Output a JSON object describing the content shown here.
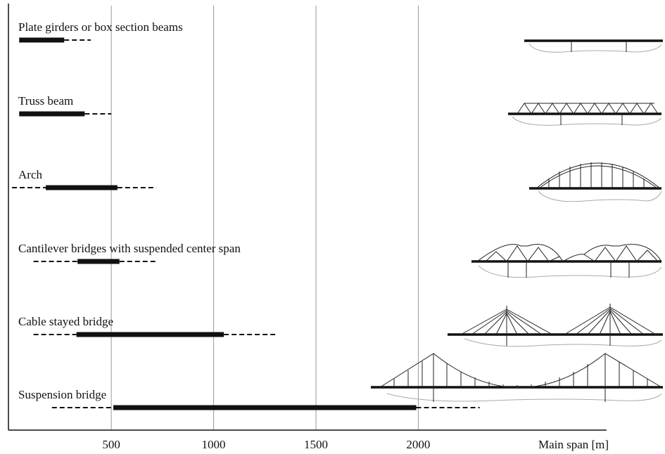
{
  "chart_data": {
    "type": "range",
    "categories": [
      "Plate girders or box section beams",
      "Truss beam",
      "Arch",
      "Cantilever bridges with suspended center span",
      "Cable stayed bridge",
      "Suspension bridge"
    ],
    "typical": [
      [
        50,
        270
      ],
      [
        50,
        370
      ],
      [
        180,
        530
      ],
      [
        335,
        540
      ],
      [
        330,
        1050
      ],
      [
        510,
        1990
      ]
    ],
    "possible": [
      [
        50,
        400
      ],
      [
        50,
        500
      ],
      [
        15,
        720
      ],
      [
        120,
        720
      ],
      [
        120,
        1310
      ],
      [
        210,
        2300
      ]
    ],
    "color": "#111",
    "xlabel": "Main span [m]",
    "xlim": [
      0,
      2920
    ],
    "xticks": [
      500,
      1000,
      1500,
      2000
    ],
    "grid": true
  }
}
